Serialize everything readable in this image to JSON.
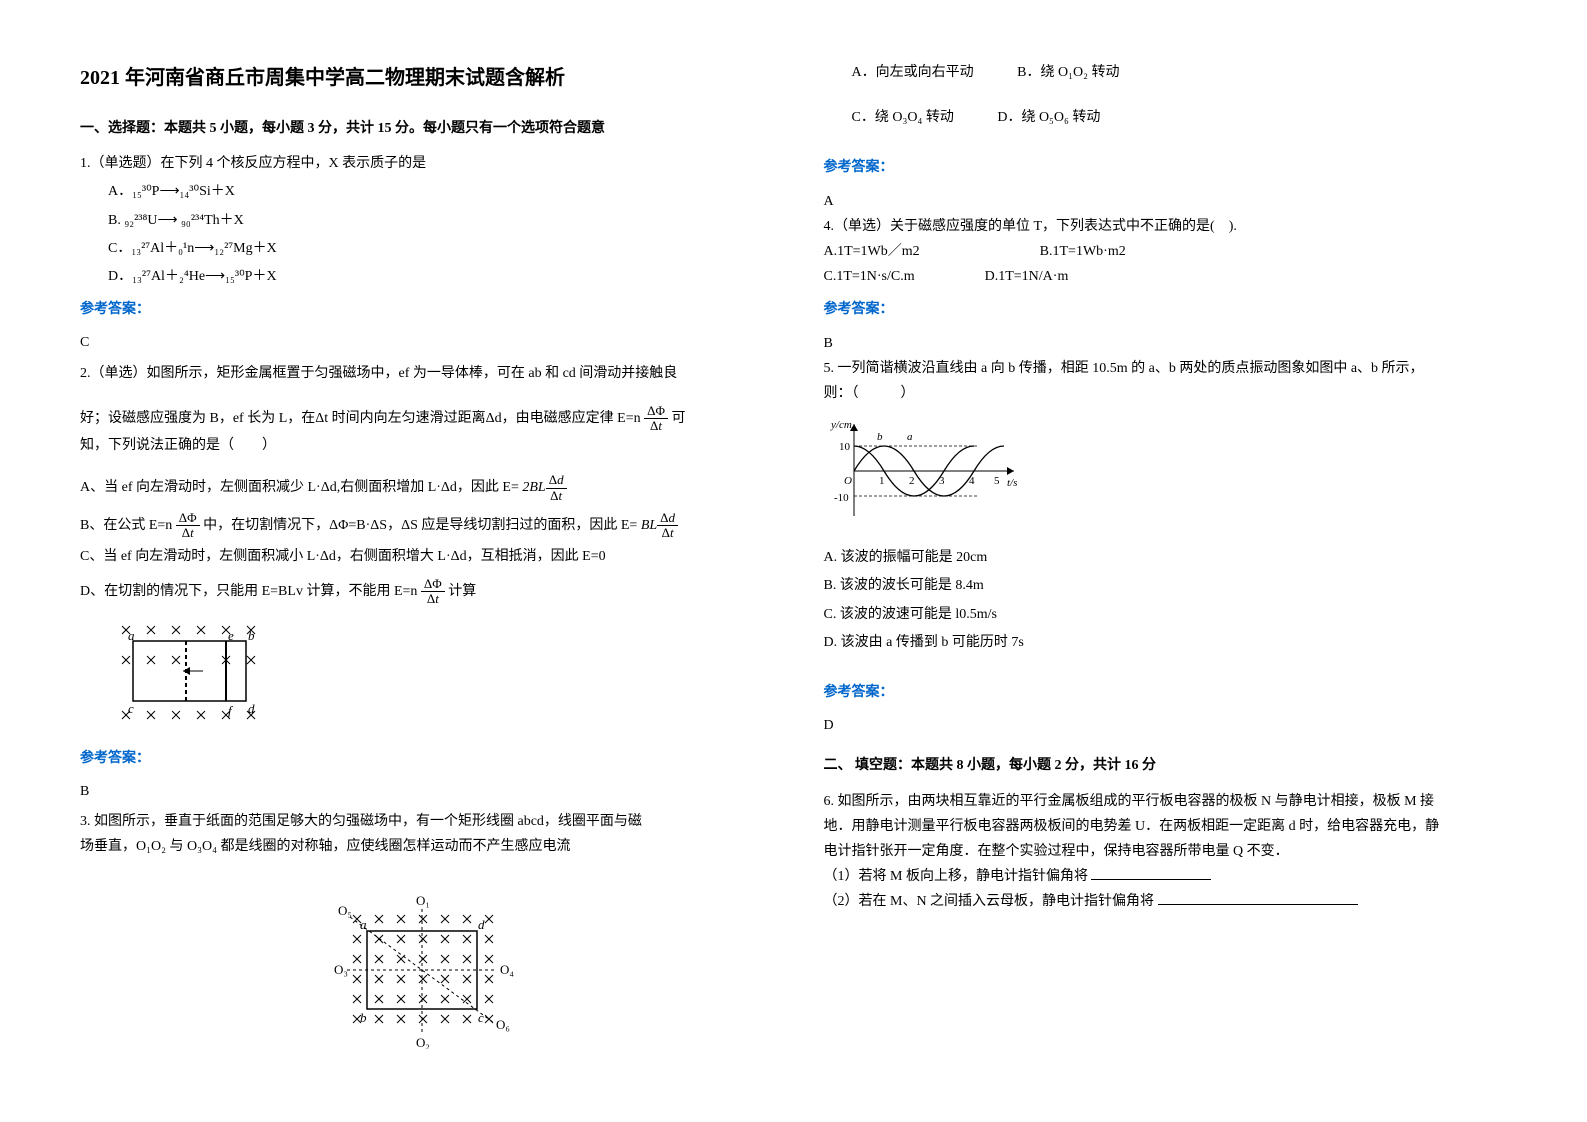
{
  "title": "2021 年河南省商丘市周集中学高二物理期末试题含解析",
  "section1_heading": "一、选择题：本题共 5 小题，每小题 3 分，共计 15 分。每小题只有一个选项符合题意",
  "q1": {
    "stem": "1.（单选题）在下列 4 个核反应方程中，X 表示质子的是",
    "optA": "A．₁₅³⁰P⟶₁₄³⁰Si＋X",
    "optB": "B. ₉₂²³⁸U⟶ ₉₀²³⁴Th＋X",
    "optC": "C．₁₃²⁷Al＋₀¹n⟶₁₂²⁷Mg＋X",
    "optD": "D．₁₃²⁷Al＋₂⁴He⟶₁₅³⁰P＋X"
  },
  "answer_label": "参考答案：",
  "q1_answer": "C",
  "q2": {
    "stem_part1": "2.（单选）如图所示，矩形金属框置于匀强磁场中，ef 为一导体棒，可在 ab 和 cd 间滑动并接触良",
    "stem_part2": "好；设磁感应强度为 B，ef 长为 L，在Δt 时间内向左匀速滑过距离Δd，由电磁感应定律 E=n",
    "stem_part3": "可",
    "stem_part4": "知，下列说法正确的是（　　）",
    "optA_pre": "A、当 ef 向左滑动时，左侧面积减少 L·Δd,右侧面积增加 L·Δd，因此 E=",
    "optB_pre": "B、在公式 E=n",
    "optB_mid": "中，在切割情况下，ΔΦ=B·ΔS，ΔS 应是导线切割扫过的面积，因此 E=",
    "optC": "C、当 ef 向左滑动时，左侧面积减小 L·Δd，右侧面积增大 L·Δd，互相抵消，因此 E=0",
    "optD_pre": "D、在切割的情况下，只能用 E=BLv 计算，不能用 E=n",
    "optD_post": "计算"
  },
  "q2_answer": "B",
  "q3": {
    "stem1": "3. 如图所示，垂直于纸面的范围足够大的匀强磁场中，有一个矩形线圈 abcd，线圈平面与磁",
    "stem2": "场垂直，O₁O₂ 与 O₃O₄ 都是线圈的对称轴，应使线圈怎样运动而不产生感应电流",
    "optA": "A．向左或向右平动",
    "optB": "B．绕 O₁O₂ 转动",
    "optC": "C．绕 O₃O₄ 转动",
    "optD": "D．绕 O₅O₆ 转动"
  },
  "q3_answer": "A",
  "q4": {
    "stem": "4.（单选）关于磁感应强度的单位 T，下列表达式中不正确的是(　).",
    "optA": "A.1T=1Wb／m2",
    "optB": "B.1T=1Wb·m2",
    "optC": "C.1T=1N·s/C.m",
    "optD": "D.1T=1N/A·m"
  },
  "q4_answer": "B",
  "q5": {
    "stem1": "5. 一列简谐横波沿直线由 a 向 b 传播，相距 10.5m 的 a、b 两处的质点振动图象如图中 a、b 所示，",
    "stem2": "则：（　　　）",
    "optA": "A. 该波的振幅可能是 20cm",
    "optB": "B. 该波的波长可能是 8.4m",
    "optC": "C. 该波的波速可能是 l0.5m/s",
    "optD": "D. 该波由 a 传播到 b 可能历时 7s"
  },
  "q5_answer": "D",
  "section2_heading": "二、 填空题：本题共 8 小题，每小题 2 分，共计 16 分",
  "q6": {
    "line1": "6. 如图所示，由两块相互靠近的平行金属板组成的平行板电容器的极板 N 与静电计相接，极板 M 接",
    "line2": "地．用静电计测量平行板电容器两极板间的电势差 U．在两板相距一定距离 d 时，给电容器充电，静",
    "line3": "电计指针张开一定角度．在整个实验过程中，保持电容器所带电量 Q 不变．",
    "sub1": "（1）若将 M 板向上移，静电计指针偏角将",
    "sub2": "（2）若在 M、N 之间插入云母板，静电计指针偏角将"
  },
  "wave_chart": {
    "ylabel": "y/cm",
    "xlabel": "t/s",
    "y_max": 10,
    "y_min": -10,
    "x_ticks": [
      1,
      2,
      3,
      4,
      5
    ],
    "curve_a_label": "a",
    "curve_b_label": "b",
    "axis_color": "#000000",
    "curve_color": "#000000",
    "grid_dash": "3,2"
  },
  "q2_diagram": {
    "rows": 4,
    "cols": 6,
    "labels": {
      "tl": "a",
      "tr": "b",
      "bl": "c",
      "br": "d",
      "topmid": "e",
      "botmid": "f"
    },
    "cross_color": "#000000"
  },
  "q3_diagram": {
    "labels": [
      "O₁",
      "O₂",
      "O₃",
      "O₄",
      "O₅",
      "O₆",
      "a",
      "b",
      "c",
      "d"
    ],
    "rows": 6,
    "cols": 7,
    "cross_color": "#000000"
  },
  "colors": {
    "text": "#000000",
    "answer": "#0066cc",
    "background": "#ffffff"
  }
}
